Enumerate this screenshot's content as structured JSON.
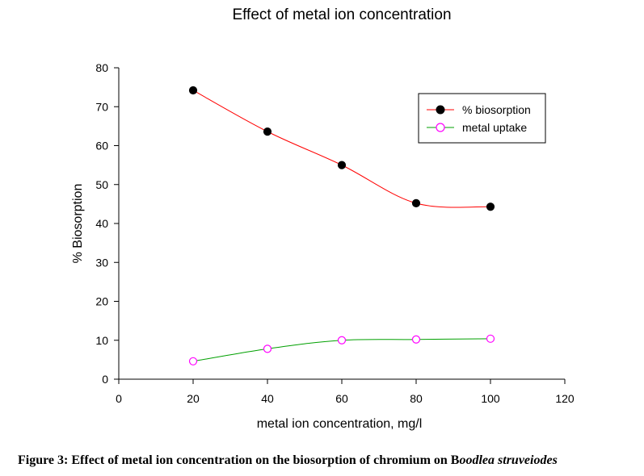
{
  "chart_data": {
    "type": "line",
    "title": "Effect of metal ion concentration",
    "xlabel": "metal ion concentration, mg/l",
    "ylabel": "% Biosorption",
    "xlim": [
      0,
      120
    ],
    "ylim": [
      0,
      80
    ],
    "x_ticks": [
      "0",
      "20",
      "40",
      "60",
      "80",
      "100",
      "120"
    ],
    "y_ticks": [
      "0",
      "10",
      "20",
      "30",
      "40",
      "50",
      "60",
      "70",
      "80"
    ],
    "x": [
      20,
      40,
      60,
      80,
      100
    ],
    "series": [
      {
        "name": "% biosorption",
        "values": [
          74.2,
          63.6,
          55.0,
          45.2,
          44.3
        ],
        "line_color": "#ff0000",
        "marker": "filled-circle",
        "marker_color": "#000000"
      },
      {
        "name": "metal uptake",
        "values": [
          4.6,
          7.8,
          10.0,
          10.2,
          10.4
        ],
        "line_color": "#00a000",
        "marker": "open-circle",
        "marker_color": "#ff00ff"
      }
    ],
    "legend_position": "top-right",
    "grid": false
  },
  "caption": {
    "prefix": "Figure 3: Effect of metal ion concentration on the biosorption of chromium on B",
    "italic": "oodlea struveiodes"
  }
}
